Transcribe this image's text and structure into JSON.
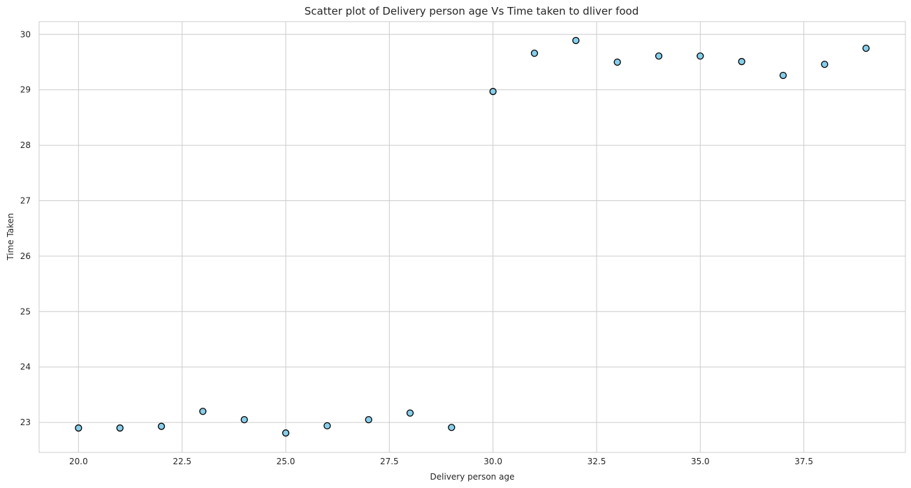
{
  "chart_data": {
    "type": "scatter",
    "title": "Scatter plot of Delivery person age Vs Time taken to dliver food",
    "xlabel": "Delivery person age",
    "ylabel": "Time Taken",
    "xlim": [
      19.05,
      39.95
    ],
    "ylim": [
      22.46,
      30.23
    ],
    "xticks": [
      20.0,
      22.5,
      25.0,
      27.5,
      30.0,
      32.5,
      35.0,
      37.5
    ],
    "xtick_labels": [
      "20.0",
      "22.5",
      "25.0",
      "27.5",
      "30.0",
      "32.5",
      "35.0",
      "37.5"
    ],
    "yticks": [
      23,
      24,
      25,
      26,
      27,
      28,
      29,
      30
    ],
    "ytick_labels": [
      "23",
      "24",
      "25",
      "26",
      "27",
      "28",
      "29",
      "30"
    ],
    "grid": true,
    "marker_color": "#87ceeb",
    "marker_edge_color": "#000000",
    "points": [
      {
        "x": 20,
        "y": 22.9
      },
      {
        "x": 21,
        "y": 22.9
      },
      {
        "x": 22,
        "y": 22.93
      },
      {
        "x": 23,
        "y": 23.2
      },
      {
        "x": 24,
        "y": 23.05
      },
      {
        "x": 25,
        "y": 22.81
      },
      {
        "x": 26,
        "y": 22.94
      },
      {
        "x": 27,
        "y": 23.05
      },
      {
        "x": 28,
        "y": 23.17
      },
      {
        "x": 29,
        "y": 22.91
      },
      {
        "x": 30,
        "y": 28.97
      },
      {
        "x": 31,
        "y": 29.66
      },
      {
        "x": 32,
        "y": 29.89
      },
      {
        "x": 33,
        "y": 29.5
      },
      {
        "x": 34,
        "y": 29.61
      },
      {
        "x": 35,
        "y": 29.61
      },
      {
        "x": 36,
        "y": 29.51
      },
      {
        "x": 37,
        "y": 29.26
      },
      {
        "x": 38,
        "y": 29.46
      },
      {
        "x": 39,
        "y": 29.75
      }
    ]
  }
}
